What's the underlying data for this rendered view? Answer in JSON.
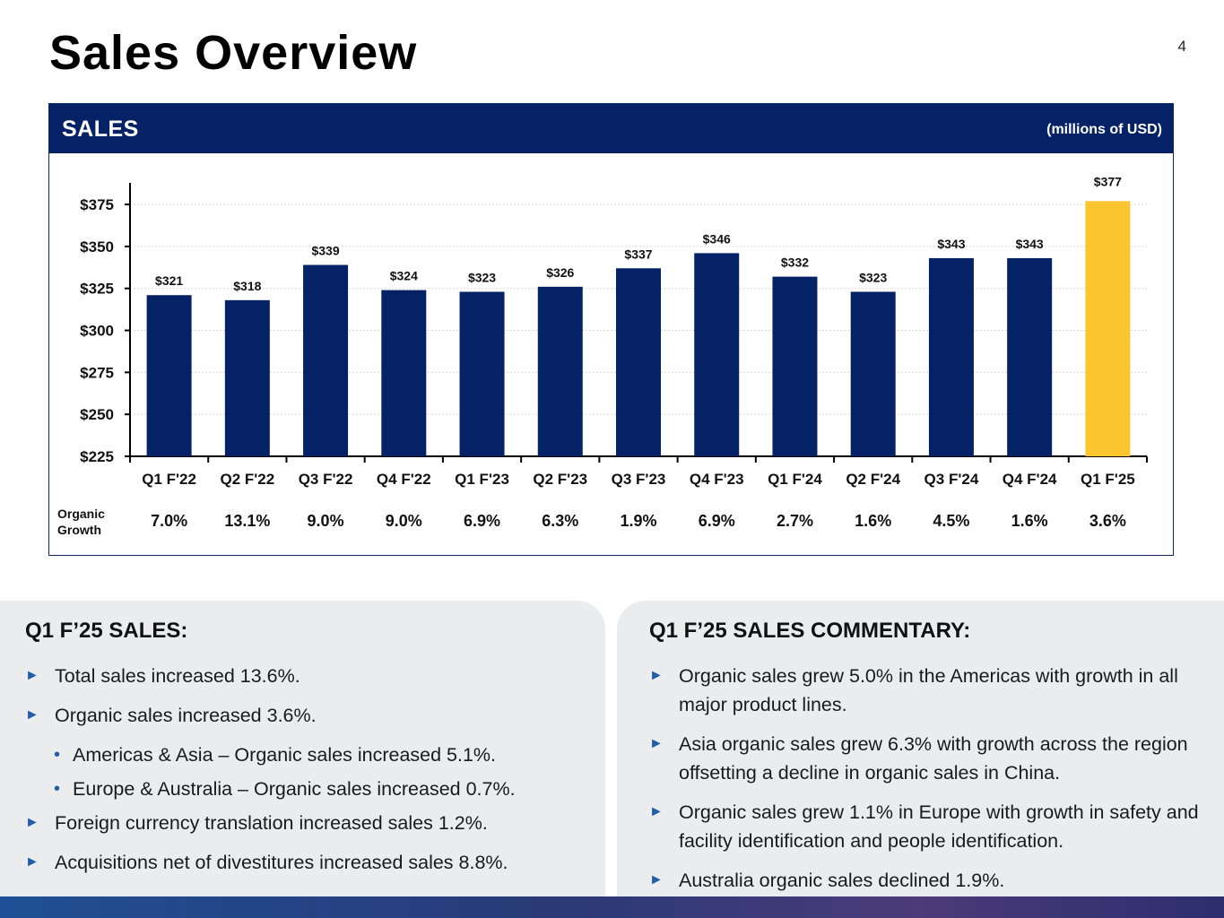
{
  "page": {
    "title": "Sales Overview",
    "page_number": "4"
  },
  "chart_header": {
    "title": "SALES",
    "units": "(millions of USD)"
  },
  "colors": {
    "navy": "#062266",
    "bar": "#062266",
    "highlight": "#fbc530",
    "accent": "#1f5fa8"
  },
  "chart_data": {
    "type": "bar",
    "title": "SALES",
    "units": "(millions of USD)",
    "categories": [
      "Q1 F'22",
      "Q2 F'22",
      "Q3 F'22",
      "Q4 F'22",
      "Q1 F'23",
      "Q2 F'23",
      "Q3 F'23",
      "Q4 F'23",
      "Q1 F'24",
      "Q2 F'24",
      "Q3 F'24",
      "Q4 F'24",
      "Q1 F'25"
    ],
    "values": [
      321,
      318,
      339,
      324,
      323,
      326,
      337,
      346,
      332,
      323,
      343,
      343,
      377
    ],
    "value_labels": [
      "$321",
      "$318",
      "$339",
      "$324",
      "$323",
      "$326",
      "$337",
      "$346",
      "$332",
      "$323",
      "$343",
      "$343",
      "$377"
    ],
    "highlight_index": 12,
    "ylim": [
      225,
      390
    ],
    "yticks": [
      225,
      250,
      275,
      300,
      325,
      350,
      375
    ],
    "ytick_labels": [
      "$225",
      "$250",
      "$275",
      "$300",
      "$325",
      "$350",
      "$375"
    ],
    "grid": true,
    "growth_label": "Organic Growth",
    "organic_growth": [
      "7.0%",
      "13.1%",
      "9.0%",
      "9.0%",
      "6.9%",
      "6.3%",
      "1.9%",
      "6.9%",
      "2.7%",
      "1.6%",
      "4.5%",
      "1.6%",
      "3.6%"
    ]
  },
  "left_panel": {
    "title": "Q1 F’25 SALES:",
    "items": [
      {
        "type": "main",
        "text": "Total sales increased 13.6%."
      },
      {
        "type": "main",
        "text": "Organic sales increased 3.6%."
      },
      {
        "type": "sub",
        "text": "Americas & Asia – Organic sales increased 5.1%."
      },
      {
        "type": "sub",
        "text": "Europe & Australia – Organic sales increased 0.7%."
      },
      {
        "type": "main",
        "text": "Foreign currency translation increased sales 1.2%."
      },
      {
        "type": "main",
        "text": "Acquisitions net of divestitures increased sales 8.8%."
      }
    ]
  },
  "right_panel": {
    "title": "Q1 F’25 SALES COMMENTARY:",
    "items": [
      {
        "type": "main",
        "text": "Organic sales grew 5.0% in the Americas with growth in all major product lines."
      },
      {
        "type": "main",
        "text": "Asia organic sales grew 6.3% with growth across the region offsetting a decline in organic sales in China."
      },
      {
        "type": "main",
        "text": "Organic sales grew 1.1% in Europe with growth in safety and facility identification and people identification."
      },
      {
        "type": "main",
        "text": "Australia organic sales declined 1.9%."
      }
    ]
  }
}
